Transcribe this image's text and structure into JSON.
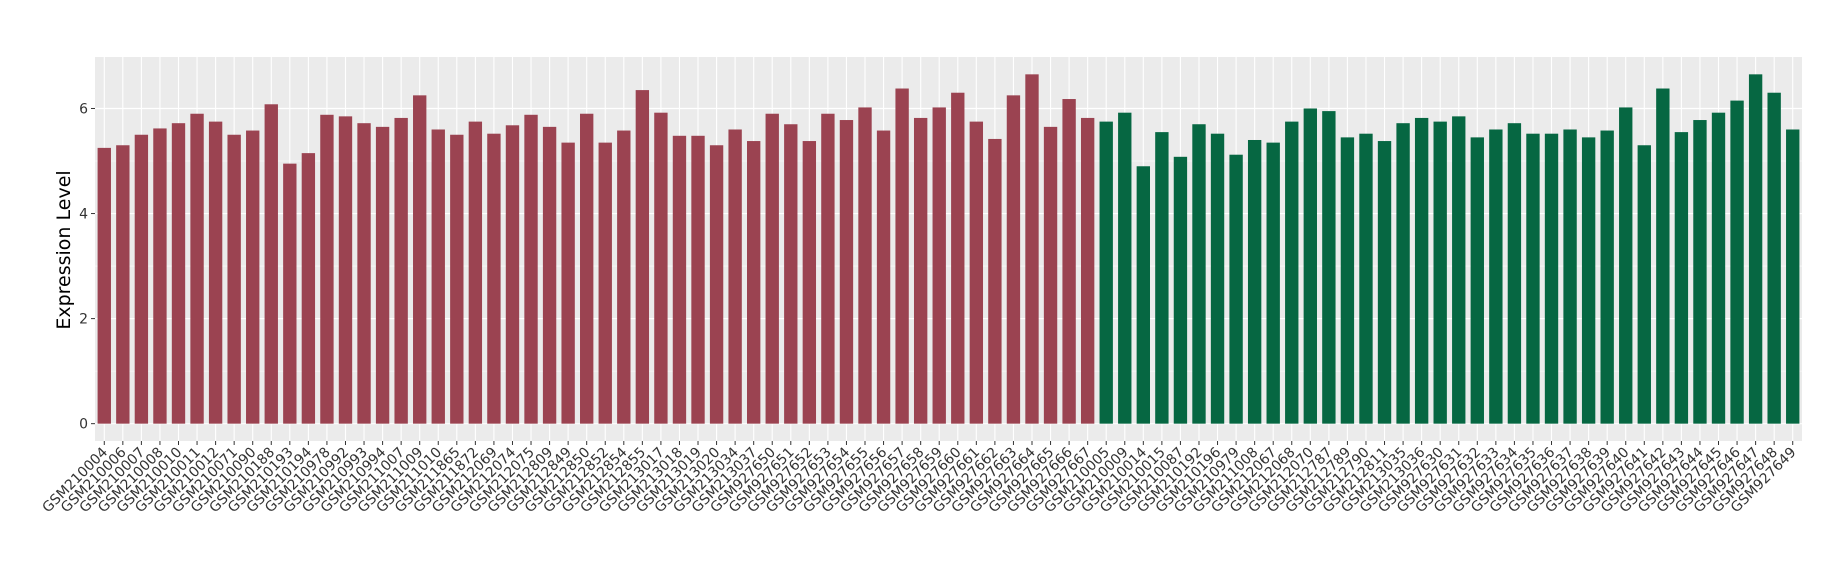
{
  "chart_data": {
    "type": "bar",
    "y_label": "Expression Level",
    "ylim": [
      -0.33,
      6.98
    ],
    "yticks": [
      0,
      2,
      4,
      6
    ],
    "grid": true,
    "series": [
      {
        "color": "#9b4351",
        "categories": [
          "GSM210004",
          "GSM210006",
          "GSM210007",
          "GSM210008",
          "GSM210010",
          "GSM210011",
          "GSM210012",
          "GSM210071",
          "GSM210090",
          "GSM210188",
          "GSM210193",
          "GSM210194",
          "GSM210978",
          "GSM210992",
          "GSM210993",
          "GSM210994",
          "GSM211007",
          "GSM211009",
          "GSM211010",
          "GSM211865",
          "GSM211872",
          "GSM212069",
          "GSM212074",
          "GSM212075",
          "GSM212809",
          "GSM212849",
          "GSM212850",
          "GSM212852",
          "GSM212854",
          "GSM212855",
          "GSM213017",
          "GSM213018",
          "GSM213019",
          "GSM213020",
          "GSM213034",
          "GSM213037",
          "GSM927650",
          "GSM927651",
          "GSM927652",
          "GSM927653",
          "GSM927654",
          "GSM927655",
          "GSM927656",
          "GSM927657",
          "GSM927658",
          "GSM927659",
          "GSM927660",
          "GSM927661",
          "GSM927662",
          "GSM927663",
          "GSM927664",
          "GSM927665",
          "GSM927666",
          "GSM927667"
        ],
        "values": [
          5.25,
          5.3,
          5.5,
          5.62,
          5.72,
          5.9,
          5.75,
          5.5,
          5.58,
          6.08,
          4.95,
          5.15,
          5.88,
          5.85,
          5.72,
          5.65,
          5.82,
          6.25,
          5.6,
          5.5,
          5.75,
          5.52,
          5.68,
          5.88,
          5.65,
          5.35,
          5.9,
          5.35,
          5.58,
          6.35,
          5.92,
          5.48,
          5.48,
          5.3,
          5.6,
          5.38,
          5.9,
          5.7,
          5.38,
          5.9,
          5.78,
          6.02,
          5.58,
          6.38,
          5.82,
          6.02,
          6.3,
          5.75,
          5.42,
          6.25,
          6.65,
          5.65,
          6.18,
          5.82
        ]
      },
      {
        "color": "#066742",
        "categories": [
          "GSM210005",
          "GSM210009",
          "GSM210014",
          "GSM210015",
          "GSM210087",
          "GSM210192",
          "GSM210196",
          "GSM210979",
          "GSM211008",
          "GSM212067",
          "GSM212068",
          "GSM212070",
          "GSM212787",
          "GSM212789",
          "GSM212790",
          "GSM212811",
          "GSM213035",
          "GSM213036",
          "GSM927630",
          "GSM927631",
          "GSM927632",
          "GSM927633",
          "GSM927634",
          "GSM927635",
          "GSM927636",
          "GSM927637",
          "GSM927638",
          "GSM927639",
          "GSM927640",
          "GSM927641",
          "GSM927642",
          "GSM927643",
          "GSM927644",
          "GSM927645",
          "GSM927646",
          "GSM927647",
          "GSM927648",
          "GSM927649"
        ],
        "values": [
          5.75,
          5.92,
          4.9,
          5.55,
          5.08,
          5.7,
          5.52,
          5.12,
          5.4,
          5.35,
          5.75,
          6.0,
          5.95,
          5.45,
          5.52,
          5.38,
          5.72,
          5.82,
          5.75,
          5.85,
          5.45,
          5.6,
          5.72,
          5.52,
          5.52,
          5.6,
          5.45,
          5.58,
          6.02,
          5.3,
          6.38,
          5.55,
          5.78,
          5.92,
          6.15,
          6.65,
          6.3,
          5.6
        ]
      }
    ]
  }
}
